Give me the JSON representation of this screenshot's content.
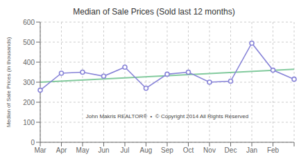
{
  "chart_data": {
    "type": "line",
    "title": "Median of Sale Prices (Sold last 12 months)",
    "ylabel": "Median of Sale Prices (in thousands)",
    "categories": [
      "Mar",
      "Apr",
      "May",
      "Jun",
      "Jul",
      "Aug",
      "Sep",
      "Oct",
      "Nov",
      "Dec",
      "Jan",
      "Feb",
      null
    ],
    "values": [
      260,
      345,
      350,
      330,
      375,
      270,
      340,
      350,
      300,
      305,
      495,
      360,
      315
    ],
    "trend": [
      300,
      365
    ],
    "annotations": [
      "John Makris REALTOR®  •  © Copyright 2014 All Rights Reserved"
    ],
    "ylim": [
      0,
      600
    ],
    "yticks": [
      0,
      100,
      200,
      300,
      400,
      500,
      600
    ],
    "grid": true,
    "marker": "circle"
  }
}
